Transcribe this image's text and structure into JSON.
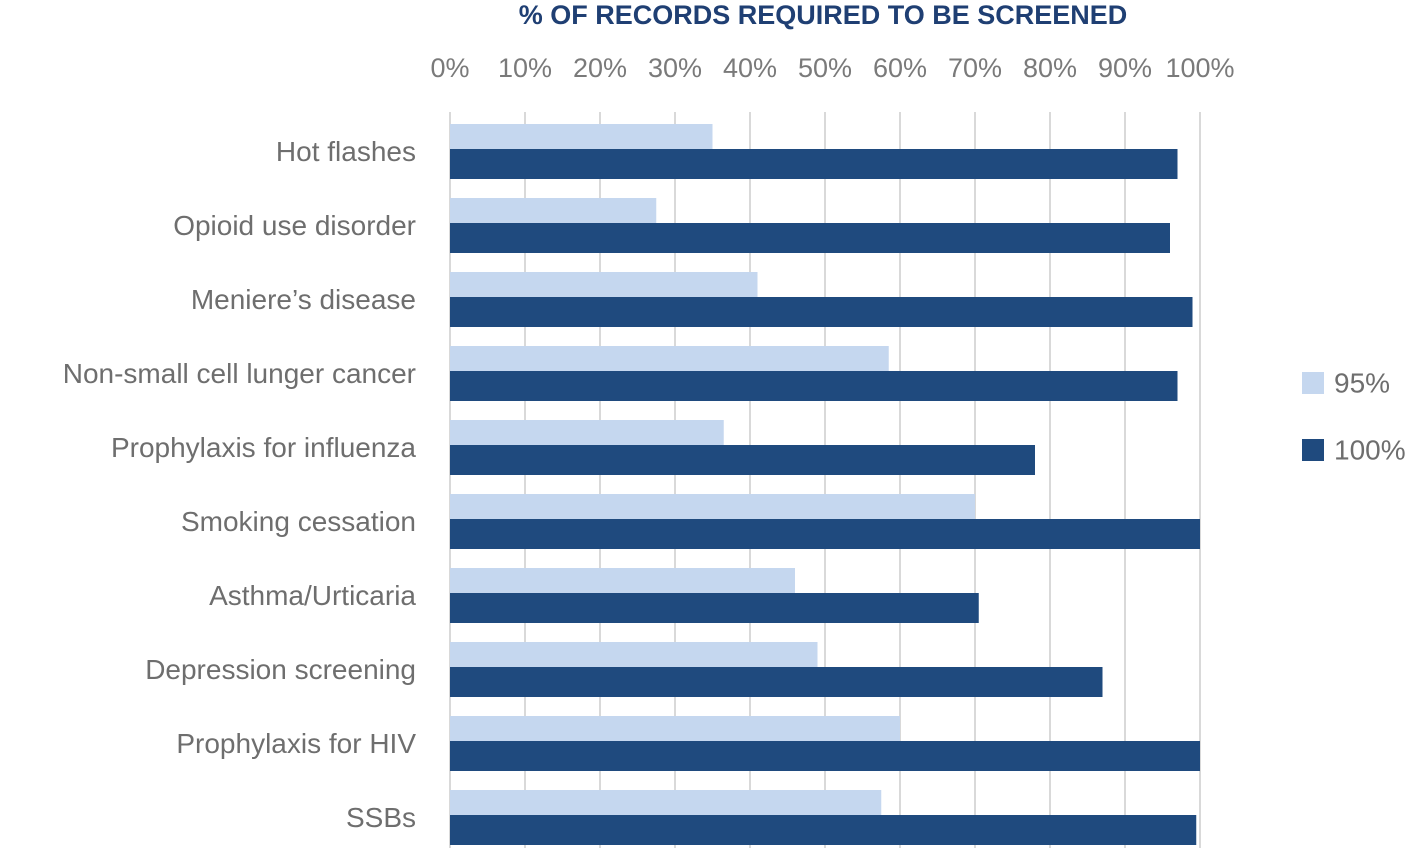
{
  "chart_data": {
    "type": "bar",
    "orientation": "horizontal",
    "title": "% OF RECORDS REQUIRED TO BE SCREENED",
    "xlabel": "",
    "ylabel": "",
    "xlim": [
      0,
      100
    ],
    "x_axis_position": "top",
    "x_ticks": [
      "0%",
      "10%",
      "20%",
      "30%",
      "40%",
      "50%",
      "60%",
      "70%",
      "80%",
      "90%",
      "100%"
    ],
    "grid": true,
    "legend_position": "right",
    "categories": [
      "Hot flashes",
      "Opioid use disorder",
      "Meniere’s disease",
      "Non-small cell lunger cancer",
      "Prophylaxis for influenza",
      "Smoking cessation",
      "Asthma/Urticaria",
      "Depression screening",
      "Prophylaxis for HIV",
      "SSBs"
    ],
    "series": [
      {
        "name": "95%",
        "color": "#c5d7ef",
        "values": [
          35,
          27.5,
          41,
          58.5,
          36.5,
          70,
          46,
          49,
          60,
          57.5
        ]
      },
      {
        "name": "100%",
        "color": "#1f4a7e",
        "values": [
          97,
          96,
          99,
          97,
          78,
          100,
          70.5,
          87,
          100,
          99.5
        ]
      }
    ]
  }
}
